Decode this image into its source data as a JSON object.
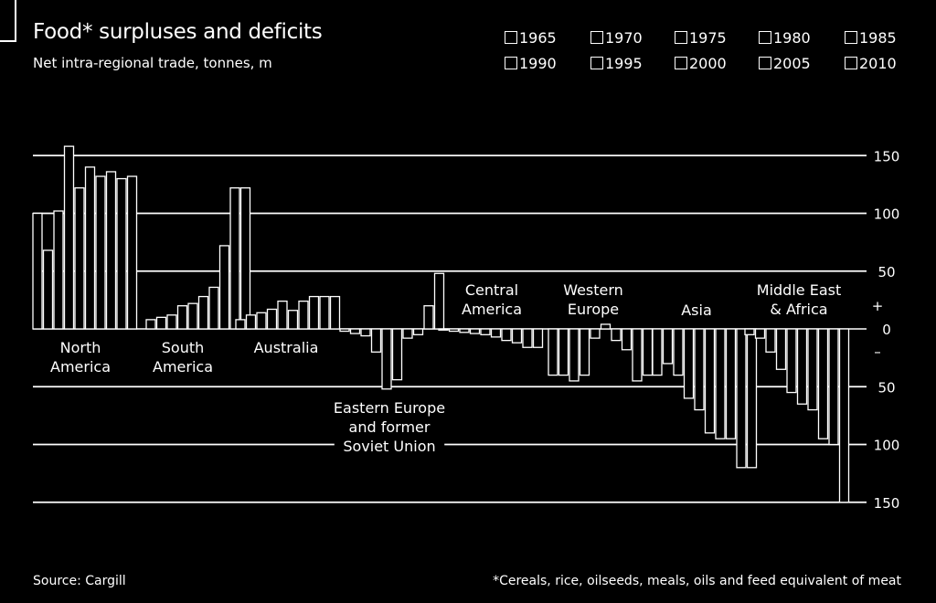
{
  "chart_data": {
    "type": "bar",
    "title": "Food* surpluses and deficits",
    "subtitle": "Net intra-regional trade, tonnes, m",
    "ylim": [
      -150,
      150
    ],
    "y_ticks": [
      {
        "value": 150,
        "label": "150"
      },
      {
        "value": 100,
        "label": "100"
      },
      {
        "value": 50,
        "label": "50"
      },
      {
        "value": 0,
        "label": "0"
      },
      {
        "value": -50,
        "label": "50"
      },
      {
        "value": -100,
        "label": "100"
      },
      {
        "value": -150,
        "label": "150"
      }
    ],
    "sign_labels": {
      "plus": "+",
      "minus": "–"
    },
    "legend": [
      "1965",
      "1970",
      "1975",
      "1980",
      "1985",
      "1990",
      "1995",
      "2000",
      "2005",
      "2010"
    ],
    "series_years": [
      1965,
      1970,
      1975,
      1980,
      1985,
      1990,
      1995,
      2000,
      2005,
      2010
    ],
    "regions": [
      {
        "name": "North America",
        "label_lines": [
          "North",
          "America"
        ],
        "label_pos": "below",
        "values": [
          100,
          68,
          102,
          158,
          122,
          140,
          132,
          136,
          130,
          132
        ]
      },
      {
        "name": "South America",
        "label_lines": [
          "South",
          "America"
        ],
        "label_pos": "below",
        "values": [
          8,
          10,
          12,
          20,
          22,
          28,
          36,
          72,
          122,
          122
        ]
      },
      {
        "name": "Australia",
        "label_lines": [
          "Australia"
        ],
        "label_pos": "below",
        "values": [
          8,
          12,
          14,
          17,
          24,
          16,
          24,
          28,
          28,
          28
        ]
      },
      {
        "name": "Eastern Europe and former Soviet Union",
        "label_lines": [
          "Eastern Europe",
          "and former",
          "Soviet Union"
        ],
        "label_pos": "below",
        "values": [
          -2,
          -4,
          -6,
          -20,
          -52,
          -44,
          -8,
          -5,
          20,
          48
        ]
      },
      {
        "name": "Central America",
        "label_lines": [
          "Central",
          "America"
        ],
        "label_pos": "above",
        "values": [
          -1,
          -2,
          -3,
          -4,
          -5,
          -7,
          -10,
          -12,
          -16,
          -16
        ]
      },
      {
        "name": "Western Europe",
        "label_lines": [
          "Western",
          "Europe"
        ],
        "label_pos": "above",
        "values": [
          -40,
          -40,
          -45,
          -40,
          -8,
          4,
          -10,
          -18,
          -45,
          -40
        ]
      },
      {
        "name": "Asia",
        "label_lines": [
          "Asia"
        ],
        "label_pos": "above",
        "values": [
          -40,
          -30,
          -40,
          -60,
          -70,
          -90,
          -95,
          -95,
          -120,
          -120
        ]
      },
      {
        "name": "Middle East & Africa",
        "label_lines": [
          "Middle East",
          "& Africa"
        ],
        "label_pos": "above",
        "values": [
          -5,
          -8,
          -20,
          -35,
          -55,
          -65,
          -70,
          -95,
          -100,
          -150
        ]
      }
    ],
    "legend_position": "top-right",
    "grid": true,
    "source": "Source: Cargill",
    "footnote": "*Cereals, rice, oilseeds, meals, oils and feed equivalent of meat"
  }
}
